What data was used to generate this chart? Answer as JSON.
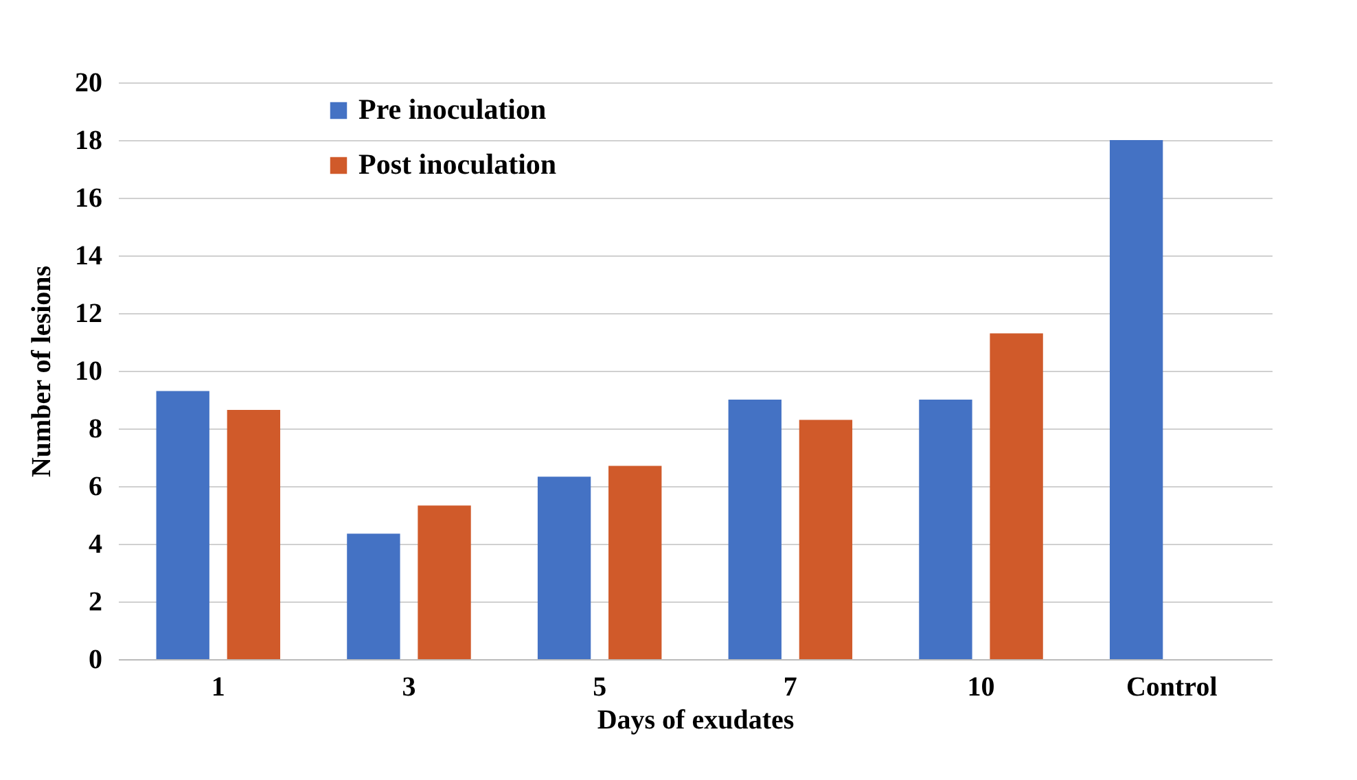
{
  "chart_data": {
    "type": "bar",
    "xlabel": "Days of exudates",
    "ylabel": "Number of lesions",
    "categories": [
      "1",
      "3",
      "5",
      "7",
      "10",
      "Control"
    ],
    "series": [
      {
        "name": "Pre inoculation",
        "color": "#4472c4",
        "values": [
          9.3,
          4.35,
          6.33,
          9.0,
          9.0,
          18.0
        ]
      },
      {
        "name": "Post inoculation",
        "color": "#d05a2a",
        "values": [
          8.64,
          5.33,
          6.7,
          8.3,
          11.3,
          null
        ]
      }
    ],
    "ylim": [
      0,
      20
    ],
    "yticks": [
      0,
      2,
      4,
      6,
      8,
      10,
      12,
      14,
      16,
      18,
      20
    ],
    "grid": "y",
    "legend": "top left"
  }
}
